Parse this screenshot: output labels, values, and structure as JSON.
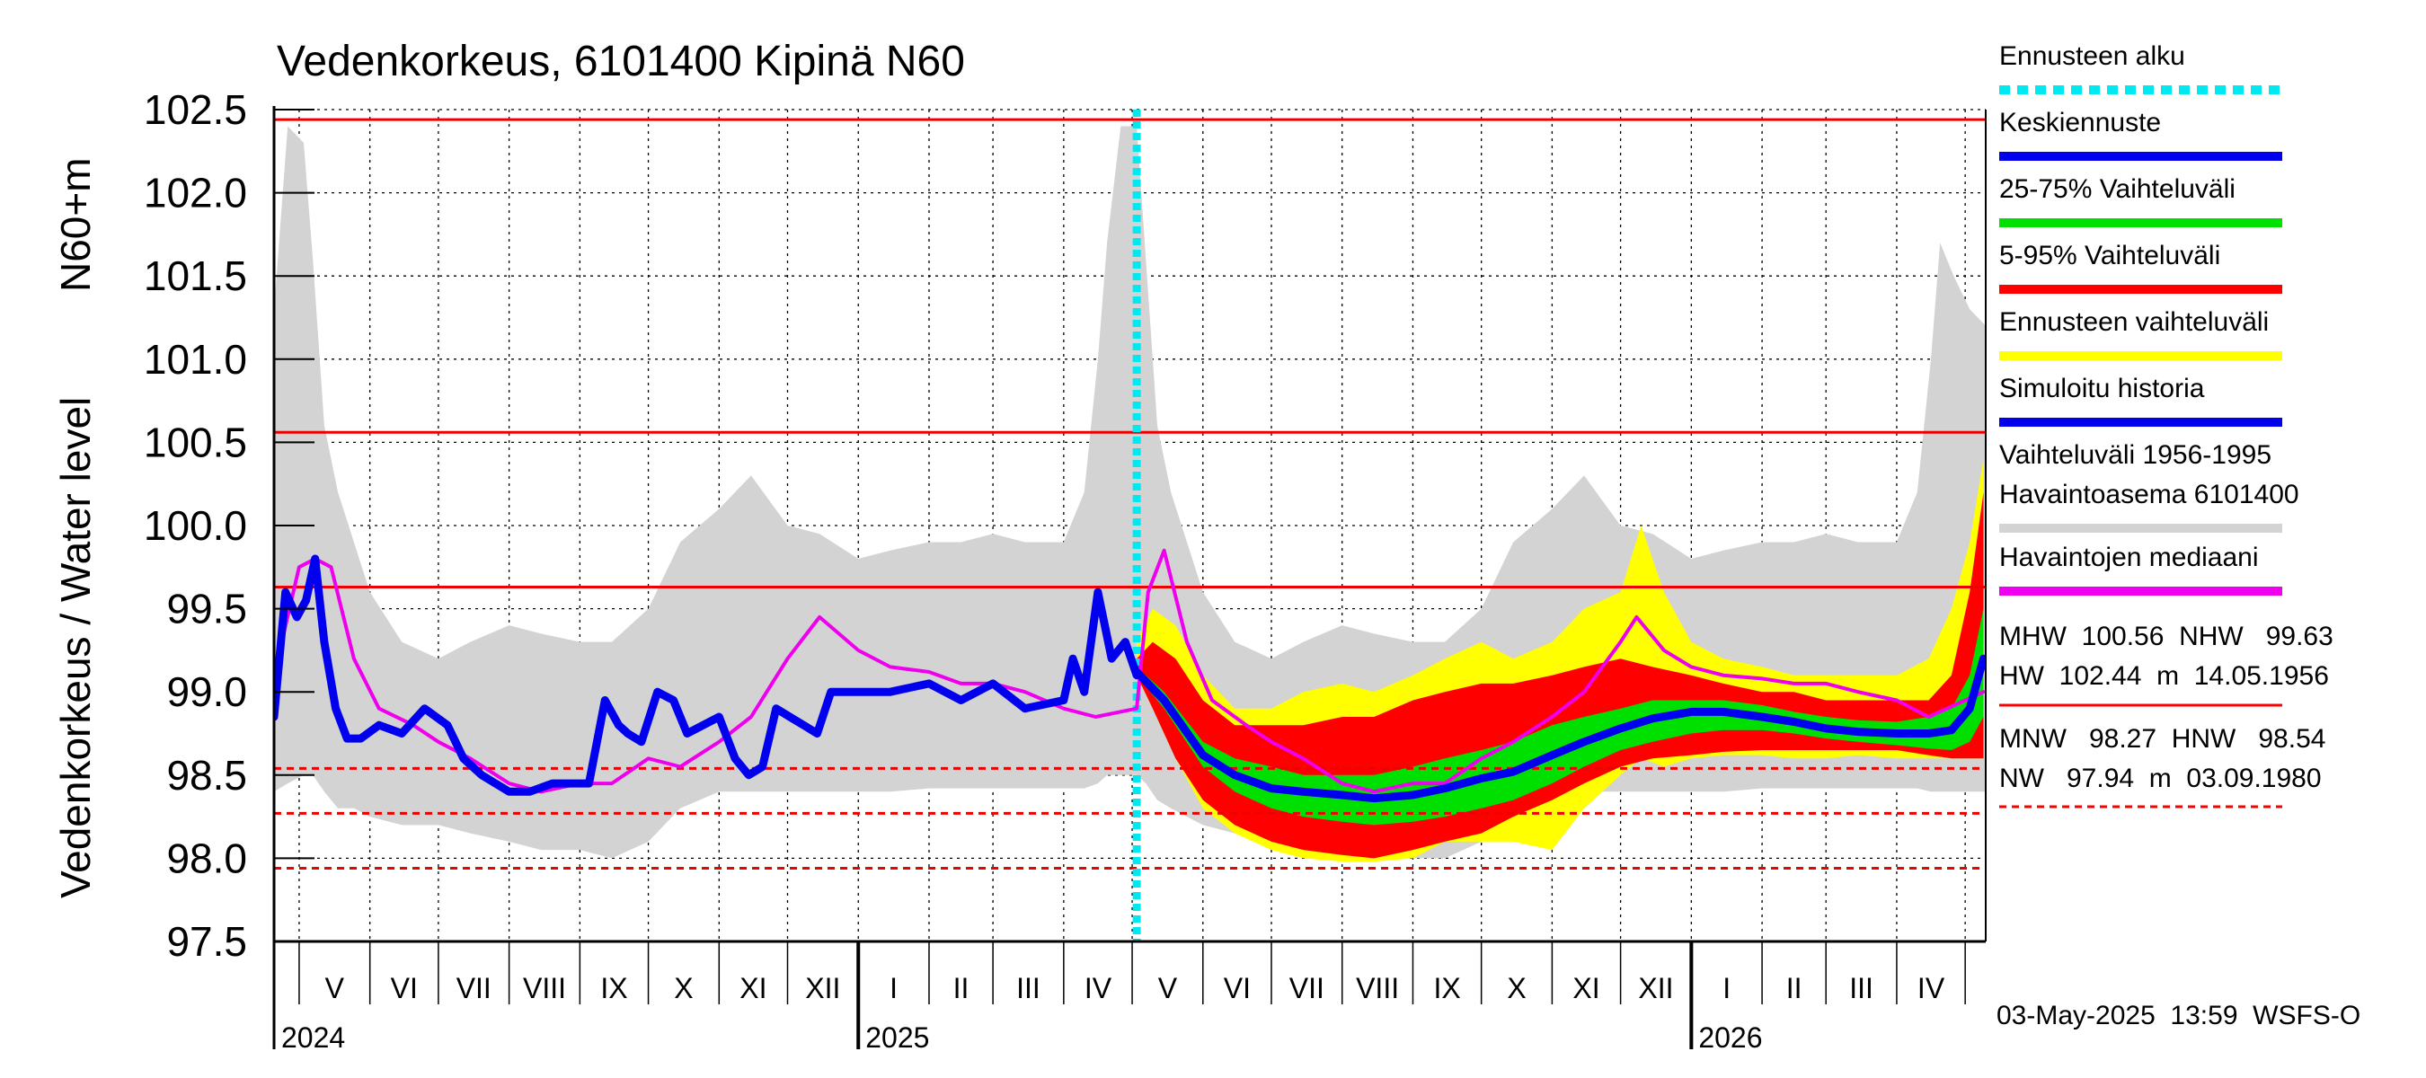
{
  "chart_data": {
    "type": "area",
    "title": "Vedenkorkeus, 6101400 Kipinä N60",
    "ylabel_main": "Vedenkorkeus / Water level",
    "ylabel_unit": "N60+m",
    "ylim": [
      97.5,
      102.5
    ],
    "y_ticks": [
      "97.5",
      "98.0",
      "98.5",
      "99.0",
      "99.5",
      "100.0",
      "100.5",
      "101.0",
      "101.5",
      "102.0",
      "102.5"
    ],
    "x_range": [
      "2024-04-20",
      "2026-05-10"
    ],
    "months": [
      {
        "label": "V",
        "start": "2024-05-01"
      },
      {
        "label": "VI",
        "start": "2024-06-01"
      },
      {
        "label": "VII",
        "start": "2024-07-01"
      },
      {
        "label": "VIII",
        "start": "2024-08-01"
      },
      {
        "label": "IX",
        "start": "2024-09-01"
      },
      {
        "label": "X",
        "start": "2024-10-01"
      },
      {
        "label": "XI",
        "start": "2024-11-01"
      },
      {
        "label": "XII",
        "start": "2024-12-01"
      },
      {
        "label": "I",
        "start": "2025-01-01"
      },
      {
        "label": "II",
        "start": "2025-02-01"
      },
      {
        "label": "III",
        "start": "2025-03-01"
      },
      {
        "label": "IV",
        "start": "2025-04-01"
      },
      {
        "label": "V",
        "start": "2025-05-01"
      },
      {
        "label": "VI",
        "start": "2025-06-01"
      },
      {
        "label": "VII",
        "start": "2025-07-01"
      },
      {
        "label": "VIII",
        "start": "2025-08-01"
      },
      {
        "label": "IX",
        "start": "2025-09-01"
      },
      {
        "label": "X",
        "start": "2025-10-01"
      },
      {
        "label": "XI",
        "start": "2025-11-01"
      },
      {
        "label": "XII",
        "start": "2025-12-01"
      },
      {
        "label": "I",
        "start": "2026-01-01"
      },
      {
        "label": "II",
        "start": "2026-02-01"
      },
      {
        "label": "III",
        "start": "2026-03-01"
      },
      {
        "label": "IV",
        "start": "2026-04-01"
      },
      {
        "label": "",
        "start": "2026-05-01"
      }
    ],
    "years": [
      {
        "label": "2024",
        "start": "2024-04-20"
      },
      {
        "label": "2025",
        "start": "2025-01-01"
      },
      {
        "label": "2026",
        "start": "2026-01-01"
      }
    ],
    "reference_lines": [
      {
        "name": "HW",
        "value": 102.44,
        "style": "solid"
      },
      {
        "name": "MHW",
        "value": 100.56,
        "style": "solid"
      },
      {
        "name": "NHW",
        "value": 99.63,
        "style": "solid"
      },
      {
        "name": "HNW",
        "value": 98.54,
        "style": "dashed"
      },
      {
        "name": "MNW",
        "value": 98.27,
        "style": "dashed"
      },
      {
        "name": "NW",
        "value": 97.94,
        "style": "dashed"
      }
    ],
    "forecast_start": "2025-05-03",
    "series": [
      {
        "name": "Vaihteluväli 1956-1995 Havaintoasema 6101400",
        "color": "#d3d3d3",
        "kind": "band",
        "x": [
          "2024-04-20",
          "2024-04-26",
          "2024-05-03",
          "2024-05-07",
          "2024-05-12",
          "2024-05-18",
          "2024-05-25",
          "2024-06-01",
          "2024-06-15",
          "2024-07-01",
          "2024-07-15",
          "2024-08-01",
          "2024-08-15",
          "2024-09-01",
          "2024-09-15",
          "2024-10-01",
          "2024-10-15",
          "2024-11-01",
          "2024-11-15",
          "2024-12-01",
          "2024-12-15",
          "2025-01-01",
          "2025-01-15",
          "2025-02-01",
          "2025-02-15",
          "2025-03-01",
          "2025-03-15",
          "2025-04-01",
          "2025-04-10",
          "2025-04-16",
          "2025-04-20",
          "2025-04-26",
          "2025-05-03",
          "2025-05-07",
          "2025-05-12",
          "2025-05-18",
          "2025-05-25",
          "2025-06-01",
          "2025-06-15",
          "2025-07-01",
          "2025-07-15",
          "2025-08-01",
          "2025-08-15",
          "2025-09-01",
          "2025-09-15",
          "2025-10-01",
          "2025-10-15",
          "2025-11-01",
          "2025-11-15",
          "2025-12-01",
          "2025-12-15",
          "2026-01-01",
          "2026-01-15",
          "2026-02-01",
          "2026-02-15",
          "2026-03-01",
          "2026-03-15",
          "2026-04-01",
          "2026-04-10",
          "2026-04-16",
          "2026-04-20",
          "2026-04-26",
          "2026-05-03",
          "2026-05-10"
        ],
        "upper": [
          101.3,
          102.4,
          102.3,
          101.6,
          100.6,
          100.2,
          99.9,
          99.6,
          99.3,
          99.2,
          99.3,
          99.4,
          99.35,
          99.3,
          99.3,
          99.5,
          99.9,
          100.1,
          100.3,
          100.0,
          99.95,
          99.8,
          99.85,
          99.9,
          99.9,
          99.95,
          99.9,
          99.9,
          100.2,
          101.0,
          101.7,
          102.4,
          102.4,
          101.6,
          100.6,
          100.2,
          99.9,
          99.6,
          99.3,
          99.2,
          99.3,
          99.4,
          99.35,
          99.3,
          99.3,
          99.5,
          99.9,
          100.1,
          100.3,
          100.0,
          99.95,
          99.8,
          99.85,
          99.9,
          99.9,
          99.95,
          99.9,
          99.9,
          100.2,
          101.0,
          101.7,
          101.5,
          101.3,
          101.2
        ],
        "lower": [
          98.4,
          98.45,
          98.5,
          98.5,
          98.4,
          98.3,
          98.3,
          98.25,
          98.2,
          98.2,
          98.15,
          98.1,
          98.05,
          98.05,
          98.0,
          98.1,
          98.3,
          98.4,
          98.4,
          98.4,
          98.4,
          98.4,
          98.4,
          98.42,
          98.42,
          98.42,
          98.42,
          98.42,
          98.42,
          98.45,
          98.5,
          98.5,
          98.5,
          98.45,
          98.35,
          98.3,
          98.25,
          98.2,
          98.15,
          98.1,
          98.05,
          98.0,
          97.98,
          98.0,
          98.0,
          98.1,
          98.25,
          98.35,
          98.4,
          98.4,
          98.4,
          98.4,
          98.4,
          98.42,
          98.42,
          98.42,
          98.42,
          98.42,
          98.42,
          98.4,
          98.4,
          98.4,
          98.4,
          98.4
        ]
      },
      {
        "name": "Ennusteen vaihteluväli",
        "color": "#ffff00",
        "kind": "band",
        "x": [
          "2025-05-03",
          "2025-05-10",
          "2025-05-20",
          "2025-06-01",
          "2025-06-15",
          "2025-07-01",
          "2025-07-15",
          "2025-08-01",
          "2025-08-15",
          "2025-09-01",
          "2025-09-15",
          "2025-10-01",
          "2025-10-15",
          "2025-11-01",
          "2025-11-15",
          "2025-12-01",
          "2025-12-10",
          "2025-12-20",
          "2026-01-01",
          "2026-01-15",
          "2026-02-01",
          "2026-02-15",
          "2026-03-01",
          "2026-03-15",
          "2026-04-01",
          "2026-04-15",
          "2026-04-25",
          "2026-05-03",
          "2026-05-09"
        ],
        "upper": [
          99.3,
          99.5,
          99.4,
          99.1,
          98.9,
          98.9,
          99.0,
          99.05,
          99.0,
          99.1,
          99.2,
          99.3,
          99.2,
          99.3,
          99.5,
          99.6,
          100.0,
          99.6,
          99.3,
          99.2,
          99.15,
          99.1,
          99.1,
          99.1,
          99.1,
          99.2,
          99.5,
          99.9,
          100.4
        ],
        "lower": [
          99.1,
          98.9,
          98.6,
          98.3,
          98.15,
          98.05,
          98.0,
          97.98,
          97.98,
          98.0,
          98.1,
          98.1,
          98.1,
          98.05,
          98.3,
          98.5,
          98.6,
          98.55,
          98.6,
          98.62,
          98.62,
          98.6,
          98.6,
          98.62,
          98.6,
          98.6,
          98.6,
          98.6,
          98.6
        ]
      },
      {
        "name": "5-95% Vaihteluväli",
        "color": "#ff0000",
        "kind": "band",
        "x": [
          "2025-05-03",
          "2025-05-10",
          "2025-05-20",
          "2025-06-01",
          "2025-06-15",
          "2025-07-01",
          "2025-07-15",
          "2025-08-01",
          "2025-08-15",
          "2025-09-01",
          "2025-09-15",
          "2025-10-01",
          "2025-10-15",
          "2025-11-01",
          "2025-11-15",
          "2025-12-01",
          "2025-12-15",
          "2026-01-01",
          "2026-01-15",
          "2026-02-01",
          "2026-02-15",
          "2026-03-01",
          "2026-03-15",
          "2026-04-01",
          "2026-04-15",
          "2026-04-25",
          "2026-05-03",
          "2026-05-09"
        ],
        "upper": [
          99.2,
          99.3,
          99.2,
          98.95,
          98.8,
          98.8,
          98.8,
          98.85,
          98.85,
          98.95,
          99.0,
          99.05,
          99.05,
          99.1,
          99.15,
          99.2,
          99.15,
          99.1,
          99.05,
          99.0,
          99.0,
          98.95,
          98.95,
          98.95,
          98.95,
          99.1,
          99.6,
          100.2
        ],
        "lower": [
          99.1,
          98.9,
          98.6,
          98.35,
          98.2,
          98.1,
          98.05,
          98.02,
          98.0,
          98.05,
          98.1,
          98.15,
          98.25,
          98.35,
          98.45,
          98.55,
          98.6,
          98.62,
          98.64,
          98.65,
          98.65,
          98.65,
          98.65,
          98.65,
          98.62,
          98.6,
          98.6,
          98.6
        ]
      },
      {
        "name": "25-75% Vaihteluväli",
        "color": "#00e000",
        "kind": "band",
        "x": [
          "2025-05-03",
          "2025-05-15",
          "2025-06-01",
          "2025-06-15",
          "2025-07-01",
          "2025-07-15",
          "2025-08-01",
          "2025-08-15",
          "2025-09-01",
          "2025-09-15",
          "2025-10-01",
          "2025-10-15",
          "2025-11-01",
          "2025-11-15",
          "2025-12-01",
          "2025-12-15",
          "2026-01-01",
          "2026-01-15",
          "2026-02-01",
          "2026-02-15",
          "2026-03-01",
          "2026-03-15",
          "2026-04-01",
          "2026-04-15",
          "2026-04-25",
          "2026-05-03",
          "2026-05-09"
        ],
        "upper": [
          99.15,
          99.0,
          98.7,
          98.6,
          98.55,
          98.5,
          98.5,
          98.5,
          98.55,
          98.6,
          98.65,
          98.7,
          98.8,
          98.85,
          98.9,
          98.95,
          98.95,
          98.95,
          98.92,
          98.88,
          98.85,
          98.83,
          98.82,
          98.85,
          98.9,
          99.1,
          99.5
        ],
        "lower": [
          99.1,
          98.9,
          98.55,
          98.4,
          98.3,
          98.25,
          98.22,
          98.2,
          98.22,
          98.25,
          98.3,
          98.35,
          98.45,
          98.55,
          98.65,
          98.7,
          98.75,
          98.77,
          98.77,
          98.75,
          98.72,
          98.7,
          98.68,
          98.66,
          98.65,
          98.7,
          98.85
        ]
      },
      {
        "name": "Havaintojen mediaani",
        "color": "#ee00ee",
        "kind": "line",
        "x": [
          "2024-04-20",
          "2024-05-01",
          "2024-05-08",
          "2024-05-15",
          "2024-05-25",
          "2024-06-05",
          "2024-06-20",
          "2024-07-01",
          "2024-07-15",
          "2024-08-01",
          "2024-08-15",
          "2024-09-01",
          "2024-09-15",
          "2024-10-01",
          "2024-10-15",
          "2024-11-01",
          "2024-11-15",
          "2024-12-01",
          "2024-12-15",
          "2025-01-01",
          "2025-01-15",
          "2025-02-01",
          "2025-02-15",
          "2025-03-01",
          "2025-03-15",
          "2025-04-01",
          "2025-04-15",
          "2025-05-03",
          "2025-05-08",
          "2025-05-15",
          "2025-05-25",
          "2025-06-05",
          "2025-06-20",
          "2025-07-01",
          "2025-07-15",
          "2025-08-01",
          "2025-08-15",
          "2025-09-01",
          "2025-09-15",
          "2025-10-01",
          "2025-10-15",
          "2025-11-01",
          "2025-11-15",
          "2025-12-01",
          "2025-12-08",
          "2025-12-20",
          "2026-01-01",
          "2026-01-15",
          "2026-02-01",
          "2026-02-15",
          "2026-03-01",
          "2026-03-15",
          "2026-04-01",
          "2026-04-15",
          "2026-05-09"
        ],
        "values": [
          99.1,
          99.75,
          99.8,
          99.75,
          99.2,
          98.9,
          98.8,
          98.7,
          98.6,
          98.45,
          98.4,
          98.45,
          98.45,
          98.6,
          98.55,
          98.7,
          98.85,
          99.2,
          99.45,
          99.25,
          99.15,
          99.12,
          99.05,
          99.05,
          99.0,
          98.9,
          98.85,
          98.9,
          99.6,
          99.85,
          99.3,
          98.95,
          98.8,
          98.7,
          98.6,
          98.45,
          98.4,
          98.45,
          98.45,
          98.6,
          98.7,
          98.85,
          99.0,
          99.3,
          99.45,
          99.25,
          99.15,
          99.1,
          99.08,
          99.05,
          99.05,
          99.0,
          98.95,
          98.85,
          99.0
        ]
      },
      {
        "name": "Simuloitu historia",
        "color": "#0000ee",
        "kind": "line",
        "x": [
          "2024-04-20",
          "2024-04-25",
          "2024-04-30",
          "2024-05-04",
          "2024-05-08",
          "2024-05-12",
          "2024-05-17",
          "2024-05-22",
          "2024-05-28",
          "2024-06-05",
          "2024-06-15",
          "2024-06-25",
          "2024-07-05",
          "2024-07-12",
          "2024-07-20",
          "2024-08-01",
          "2024-08-10",
          "2024-08-20",
          "2024-08-28",
          "2024-09-05",
          "2024-09-12",
          "2024-09-18",
          "2024-09-22",
          "2024-09-28",
          "2024-10-05",
          "2024-10-12",
          "2024-10-18",
          "2024-10-25",
          "2024-11-01",
          "2024-11-08",
          "2024-11-14",
          "2024-11-20",
          "2024-11-26",
          "2024-12-02",
          "2024-12-08",
          "2024-12-14",
          "2024-12-20",
          "2025-01-01",
          "2025-01-15",
          "2025-02-01",
          "2025-02-15",
          "2025-03-01",
          "2025-03-15",
          "2025-04-01",
          "2025-04-05",
          "2025-04-10",
          "2025-04-16",
          "2025-04-22",
          "2025-04-28",
          "2025-05-03"
        ],
        "values": [
          98.85,
          99.6,
          99.45,
          99.55,
          99.8,
          99.3,
          98.9,
          98.72,
          98.72,
          98.8,
          98.75,
          98.9,
          98.8,
          98.6,
          98.5,
          98.4,
          98.4,
          98.45,
          98.45,
          98.45,
          98.95,
          98.8,
          98.75,
          98.7,
          99.0,
          98.95,
          98.75,
          98.8,
          98.85,
          98.6,
          98.5,
          98.55,
          98.9,
          98.85,
          98.8,
          98.75,
          99.0,
          99.0,
          99.0,
          99.05,
          98.95,
          99.05,
          98.9,
          98.95,
          99.2,
          99.0,
          99.6,
          99.2,
          99.3,
          99.1
        ]
      },
      {
        "name": "Keskiennuste",
        "color": "#0000ee",
        "kind": "line",
        "x": [
          "2025-05-03",
          "2025-05-15",
          "2025-06-01",
          "2025-06-15",
          "2025-07-01",
          "2025-07-15",
          "2025-08-01",
          "2025-08-15",
          "2025-09-01",
          "2025-09-15",
          "2025-10-01",
          "2025-10-15",
          "2025-11-01",
          "2025-11-15",
          "2025-12-01",
          "2025-12-15",
          "2026-01-01",
          "2026-01-15",
          "2026-02-01",
          "2026-02-15",
          "2026-03-01",
          "2026-03-15",
          "2026-04-01",
          "2026-04-15",
          "2026-04-25",
          "2026-05-03",
          "2026-05-09"
        ],
        "values": [
          99.12,
          98.95,
          98.62,
          98.5,
          98.42,
          98.4,
          98.38,
          98.36,
          98.38,
          98.42,
          98.48,
          98.52,
          98.62,
          98.7,
          98.78,
          98.84,
          98.88,
          98.88,
          98.85,
          98.82,
          98.78,
          98.76,
          98.75,
          98.75,
          98.77,
          98.9,
          99.2
        ]
      },
      {
        "name": "Ennusteen alku",
        "color": "#00e0f0",
        "kind": "vline"
      }
    ]
  },
  "legend": [
    {
      "label": "Ennusteen alku",
      "color": "#00e8f0",
      "style": "dotted"
    },
    {
      "label": "Keskiennuste",
      "color": "#0000ee",
      "style": "solid"
    },
    {
      "label": "25-75% Vaihteluväli",
      "color": "#00e000",
      "style": "solid"
    },
    {
      "label": "5-95% Vaihteluväli",
      "color": "#ff0000",
      "style": "solid"
    },
    {
      "label": "Ennusteen vaihteluväli",
      "color": "#ffff00",
      "style": "solid"
    },
    {
      "label": "Simuloitu historia",
      "color": "#0000ee",
      "style": "solid"
    },
    {
      "label": "Vaihteluväli 1956-1995",
      "label2": " Havaintoasema 6101400",
      "color": "#d3d3d3",
      "style": "solid"
    },
    {
      "label": "Havaintojen mediaani",
      "color": "#ee00ee",
      "style": "solid"
    }
  ],
  "stats": {
    "line1": "MHW  100.56  NHW   99.63",
    "line2": "HW  102.44  m  14.05.1956",
    "line3": "MNW   98.27  HNW   98.54",
    "line4": "NW   97.94  m  03.09.1980"
  },
  "footer": "03-May-2025  13:59  WSFS-O"
}
